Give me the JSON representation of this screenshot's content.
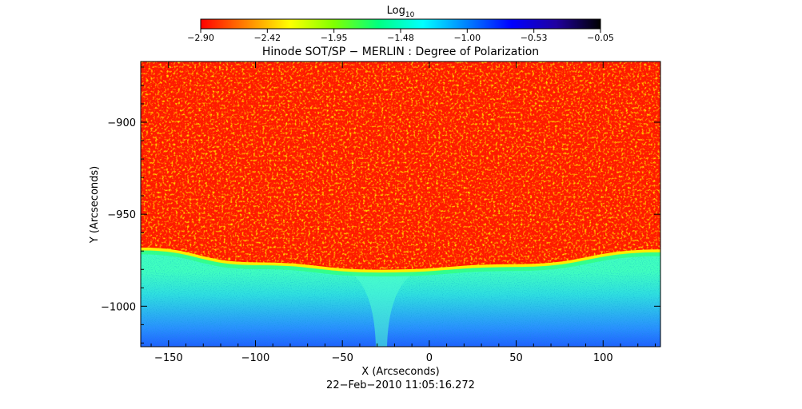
{
  "chart_data": {
    "type": "heatmap",
    "title": "Hinode SOT/SP − MERLIN : Degree of Polarization",
    "xlabel": "X (Arcseconds)",
    "ylabel": "Y (Arcseconds)",
    "timestamp": "22−Feb−2010 11:05:16.272",
    "xlim": [
      -166,
      133
    ],
    "ylim": [
      -1022,
      -867
    ],
    "x_ticks": [
      -150,
      -100,
      -50,
      0,
      50,
      100
    ],
    "x_tick_labels": [
      "−150",
      "−100",
      "−50",
      "0",
      "50",
      "100"
    ],
    "y_ticks": [
      -900,
      -950,
      -1000
    ],
    "y_tick_labels": [
      "−900",
      "−950",
      "−1000"
    ],
    "limb_y": [
      {
        "x": -166,
        "y": -969
      },
      {
        "x": -100,
        "y": -977
      },
      {
        "x": -28,
        "y": -981
      },
      {
        "x": 50,
        "y": -978
      },
      {
        "x": 133,
        "y": -970
      }
    ],
    "colorbar": {
      "label_main": "Log",
      "label_sub": "10",
      "range": [
        -2.9,
        -0.05
      ],
      "tick_labels": [
        "−2.90",
        "−2.42",
        "−1.95",
        "−1.48",
        "−1.00",
        "−0.53",
        "−0.05"
      ],
      "colors": [
        "#ff0000",
        "#ff8000",
        "#ffff00",
        "#80ff00",
        "#00ff80",
        "#00ffff",
        "#0080ff",
        "#0000ff",
        "#2000a0",
        "#000000"
      ]
    },
    "colors": {
      "disk": "#ff1a00",
      "limb": "#ffee00",
      "offlimb_near": "#40ffc0",
      "offlimb_far": "#2060ff"
    }
  }
}
